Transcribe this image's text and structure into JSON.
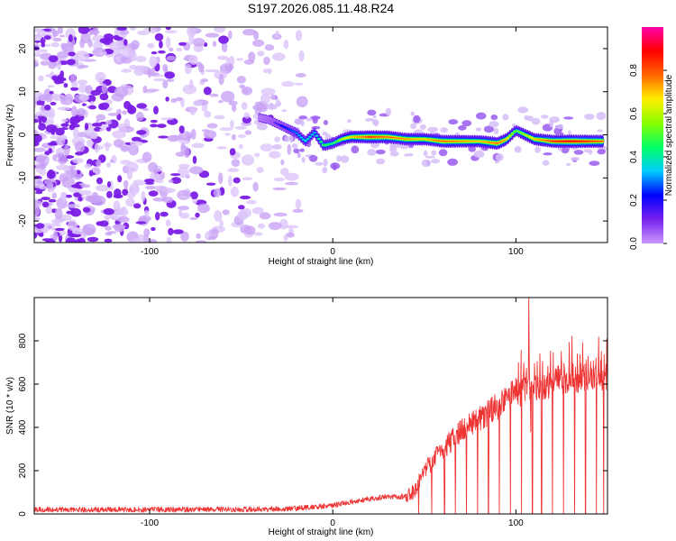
{
  "title": "S197.2026.085.11.48.R24",
  "colors": {
    "snr_line": "#ee3333",
    "axis": "#000000",
    "background": "#ffffff"
  },
  "chart_data": [
    {
      "type": "heatmap",
      "xlabel": "Height of straight line (km)",
      "ylabel": "Frequency (Hz)",
      "xlim": [
        -163,
        150
      ],
      "ylim": [
        -25,
        25
      ],
      "xticks": [
        -100,
        0,
        100
      ],
      "yticks": [
        -20,
        -10,
        0,
        10,
        20
      ],
      "colorbar": {
        "label": "Normalized spectral amplitude",
        "range": [
          0.0,
          1.0
        ],
        "ticks": [
          "0.0",
          "0.2",
          "0.4",
          "0.6",
          "0.8"
        ],
        "colors": [
          "#cc99ff",
          "#7722ee",
          "#0000ff",
          "#00ccff",
          "#00ff66",
          "#88ff00",
          "#ffee00",
          "#ff6600",
          "#ff0000",
          "#ff00aa"
        ]
      },
      "ridge": {
        "description": "Narrow-band signal near 0 Hz, visible from about -40 km to 150 km height",
        "x": [
          -40,
          -35,
          -30,
          -25,
          -20,
          -15,
          -10,
          -5,
          0,
          5,
          10,
          20,
          30,
          40,
          50,
          60,
          70,
          80,
          90,
          95,
          100,
          105,
          110,
          120,
          130,
          140,
          148
        ],
        "freq": [
          4,
          3.5,
          2.5,
          1.5,
          0.5,
          -1.5,
          0.5,
          -2.5,
          -2,
          -1,
          -0.5,
          -0.5,
          -0.5,
          -1,
          -1,
          -1.5,
          -1.5,
          -1.5,
          -2,
          -1,
          1,
          0,
          -1,
          -1.5,
          -1.5,
          -1.5,
          -1.5
        ],
        "amplitude": [
          0.1,
          0.15,
          0.2,
          0.25,
          0.3,
          0.4,
          0.35,
          0.5,
          0.45,
          0.6,
          0.7,
          0.85,
          0.8,
          0.75,
          0.7,
          0.8,
          0.75,
          0.7,
          0.8,
          0.7,
          0.5,
          0.6,
          0.7,
          0.85,
          0.9,
          0.85,
          0.8
        ]
      },
      "noise_region": {
        "x_range": [
          -163,
          -15
        ],
        "amplitude_range": [
          0.0,
          0.15
        ]
      }
    },
    {
      "type": "line",
      "xlabel": "Height of straight line (km)",
      "ylabel": "SNR (10 * v/v)",
      "xlim": [
        -163,
        150
      ],
      "ylim": [
        0,
        1000
      ],
      "xticks": [
        -100,
        0,
        100
      ],
      "yticks": [
        0,
        200,
        400,
        600,
        800
      ],
      "series": [
        {
          "name": "SNR",
          "envelope_x": [
            -163,
            -120,
            -80,
            -40,
            -20,
            0,
            10,
            20,
            30,
            40,
            45,
            50,
            60,
            70,
            80,
            90,
            100,
            110,
            120,
            130,
            140,
            150
          ],
          "envelope_y": [
            20,
            20,
            20,
            22,
            25,
            40,
            55,
            70,
            80,
            80,
            110,
            200,
            300,
            380,
            440,
            500,
            560,
            590,
            610,
            630,
            640,
            650
          ],
          "dips_x": [
            47,
            54,
            61,
            67,
            73,
            79,
            85,
            91,
            97,
            103,
            109,
            114,
            120,
            126,
            132,
            138,
            144,
            148
          ],
          "spikes": [
            {
              "x": 107,
              "y": 1000
            },
            {
              "x": 108,
              "y": 380
            }
          ]
        }
      ]
    }
  ]
}
